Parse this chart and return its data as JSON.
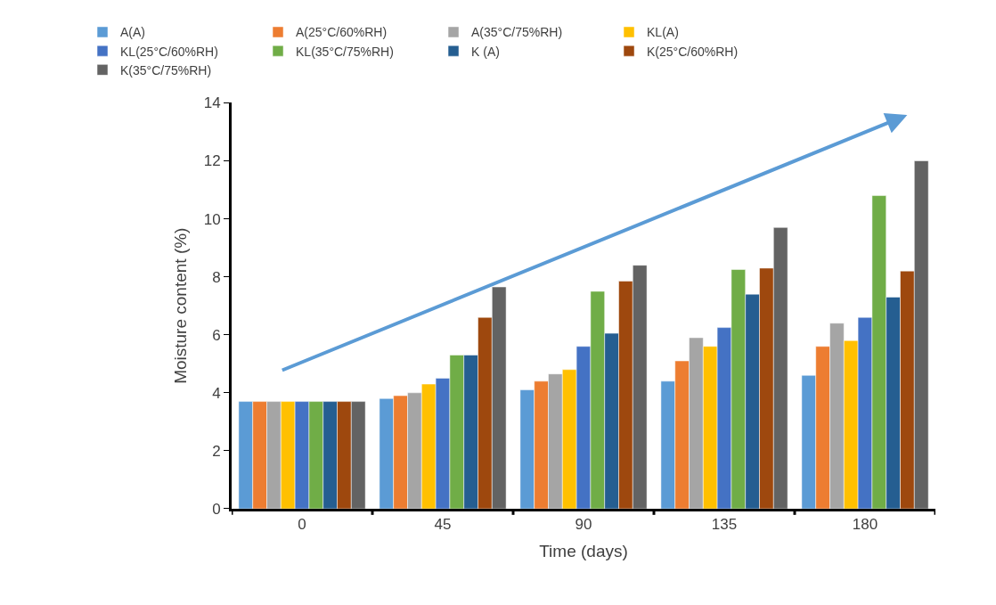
{
  "chart_data": {
    "type": "bar",
    "xlabel": "Time (days)",
    "ylabel": "Moisture content (%)",
    "categories": [
      "0",
      "45",
      "90",
      "135",
      "180"
    ],
    "series": [
      {
        "name": "A(A)",
        "color": "#5b9bd5",
        "values": [
          3.7,
          3.8,
          4.1,
          4.4,
          4.6
        ]
      },
      {
        "name": "A(25°C/60%RH)",
        "color": "#ed7d31",
        "values": [
          3.7,
          3.9,
          4.4,
          5.1,
          5.6
        ]
      },
      {
        "name": "A(35°C/75%RH)",
        "color": "#a5a5a5",
        "values": [
          3.7,
          4.0,
          4.65,
          5.9,
          6.4
        ]
      },
      {
        "name": "KL(A)",
        "color": "#ffc000",
        "values": [
          3.7,
          4.3,
          4.8,
          5.6,
          5.8
        ]
      },
      {
        "name": "KL(25°C/60%RH)",
        "color": "#4472c4",
        "values": [
          3.7,
          4.5,
          5.6,
          6.25,
          6.6
        ]
      },
      {
        "name": "KL(35°C/75%RH)",
        "color": "#70ad47",
        "values": [
          3.7,
          5.3,
          7.5,
          8.25,
          10.8
        ]
      },
      {
        "name": "K (A)",
        "color": "#255e91",
        "values": [
          3.7,
          5.3,
          6.05,
          7.4,
          7.3
        ]
      },
      {
        "name": "K(25°C/60%RH)",
        "color": "#9e480e",
        "values": [
          3.7,
          6.6,
          7.85,
          8.3,
          8.2
        ]
      },
      {
        "name": "K(35°C/75%RH)",
        "color": "#636363",
        "values": [
          3.7,
          7.65,
          8.4,
          9.7,
          12.0
        ]
      }
    ],
    "ylim": [
      0,
      14
    ],
    "yticks": [
      0,
      2,
      4,
      6,
      8,
      10,
      12,
      14
    ],
    "legend": "top"
  }
}
